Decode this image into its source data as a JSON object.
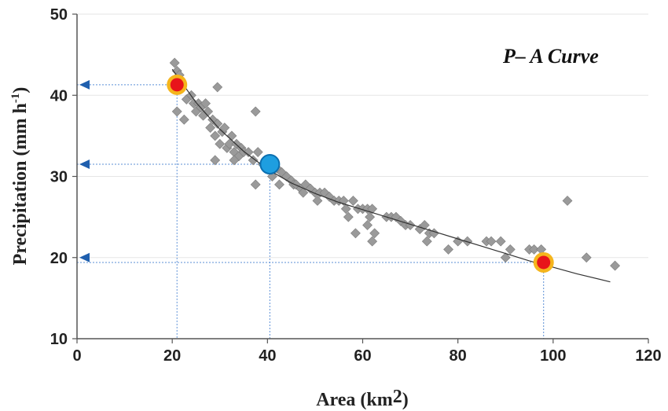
{
  "chart_data": {
    "type": "scatter",
    "xlabel_main": "Area (km",
    "xlabel_sup": "2",
    "xlabel_close": ")",
    "ylabel_main": "Precipitation (mm h",
    "ylabel_sup": "-1",
    "ylabel_close": ")",
    "annotation": "P– A  Curve",
    "xlim": [
      0,
      120
    ],
    "ylim": [
      10,
      50
    ],
    "x_ticks": [
      "0",
      "20",
      "40",
      "60",
      "80",
      "100",
      "120"
    ],
    "y_ticks": [
      "10",
      "20",
      "30",
      "40",
      "50"
    ],
    "grid": "horizontal",
    "colors": {
      "points": "#9a9a9a",
      "curve": "#333333",
      "red_marker": "#e8141a",
      "marker_ring": "#f5b51c",
      "blue_marker": "#1e9ee0",
      "guide_lines": "#5b8fd6",
      "arrows": "#1f5fae"
    },
    "scatter_points": [
      [
        20.5,
        44
      ],
      [
        21,
        43
      ],
      [
        21.5,
        42.5
      ],
      [
        22,
        41.5
      ],
      [
        21,
        38
      ],
      [
        22.5,
        37
      ],
      [
        23,
        39.5
      ],
      [
        24,
        40
      ],
      [
        24.5,
        39
      ],
      [
        25,
        38
      ],
      [
        25.5,
        39
      ],
      [
        26,
        38.5
      ],
      [
        26.5,
        37.5
      ],
      [
        27,
        39
      ],
      [
        27.5,
        38
      ],
      [
        28,
        36
      ],
      [
        28.5,
        37
      ],
      [
        29,
        35
      ],
      [
        29.5,
        36.5
      ],
      [
        29.5,
        41
      ],
      [
        30,
        34
      ],
      [
        30.5,
        35.5
      ],
      [
        31,
        36
      ],
      [
        31.5,
        33.5
      ],
      [
        32,
        34
      ],
      [
        32.5,
        35
      ],
      [
        33,
        33
      ],
      [
        33.5,
        34
      ],
      [
        34,
        32.5
      ],
      [
        34.5,
        33.5
      ],
      [
        35,
        33
      ],
      [
        29,
        32
      ],
      [
        33,
        32
      ],
      [
        36,
        33
      ],
      [
        37,
        32
      ],
      [
        37.5,
        38
      ],
      [
        38,
        33
      ],
      [
        37.5,
        29
      ],
      [
        39,
        31.5
      ],
      [
        40,
        31
      ],
      [
        41,
        30
      ],
      [
        42,
        31
      ],
      [
        42.5,
        29
      ],
      [
        43,
        30.5
      ],
      [
        44,
        30
      ],
      [
        45,
        29.5
      ],
      [
        45.5,
        29
      ],
      [
        46,
        29
      ],
      [
        47,
        28.5
      ],
      [
        47.5,
        28
      ],
      [
        48,
        29
      ],
      [
        49,
        28.5
      ],
      [
        50,
        28
      ],
      [
        50.5,
        27
      ],
      [
        51,
        28
      ],
      [
        52,
        28
      ],
      [
        53,
        27.5
      ],
      [
        54,
        27
      ],
      [
        55,
        27
      ],
      [
        56,
        27
      ],
      [
        56.5,
        26
      ],
      [
        57,
        25
      ],
      [
        58,
        27
      ],
      [
        58.5,
        23
      ],
      [
        59,
        26
      ],
      [
        60,
        26
      ],
      [
        61,
        26
      ],
      [
        61.5,
        25
      ],
      [
        62,
        26
      ],
      [
        62.5,
        23
      ],
      [
        61,
        24
      ],
      [
        62,
        22
      ],
      [
        65,
        25
      ],
      [
        66,
        25
      ],
      [
        67,
        25
      ],
      [
        68,
        24.5
      ],
      [
        69,
        24
      ],
      [
        70,
        24
      ],
      [
        72,
        23.5
      ],
      [
        73,
        24
      ],
      [
        73.5,
        22
      ],
      [
        74,
        23
      ],
      [
        75,
        23
      ],
      [
        78,
        21
      ],
      [
        80,
        22
      ],
      [
        82,
        22
      ],
      [
        86,
        22
      ],
      [
        87,
        22
      ],
      [
        89,
        22
      ],
      [
        90,
        20
      ],
      [
        91,
        21
      ],
      [
        95,
        21
      ],
      [
        96,
        21
      ],
      [
        97.5,
        21
      ],
      [
        103,
        27
      ],
      [
        107,
        20
      ],
      [
        113,
        19
      ]
    ],
    "fit_curve": [
      [
        20,
        43.2
      ],
      [
        25,
        39.1
      ],
      [
        30,
        35.8
      ],
      [
        35,
        33.1
      ],
      [
        40,
        30.9
      ],
      [
        45,
        29.2
      ],
      [
        50,
        27.9
      ],
      [
        55,
        26.8
      ],
      [
        60,
        25.9
      ],
      [
        65,
        25
      ],
      [
        70,
        24.1
      ],
      [
        75,
        23.2
      ],
      [
        80,
        22.3
      ],
      [
        85,
        21.4
      ],
      [
        90,
        20.5
      ],
      [
        95,
        19.6
      ],
      [
        100,
        18.8
      ],
      [
        105,
        18
      ],
      [
        112,
        17
      ]
    ],
    "highlight_points": [
      {
        "x": 21,
        "y": 41.3,
        "color": "red"
      },
      {
        "x": 40.5,
        "y": 31.5,
        "color": "blue"
      },
      {
        "x": 98,
        "y": 19.4,
        "color": "red"
      }
    ],
    "reference_arrows_y": [
      41.3,
      31.5,
      20
    ]
  }
}
